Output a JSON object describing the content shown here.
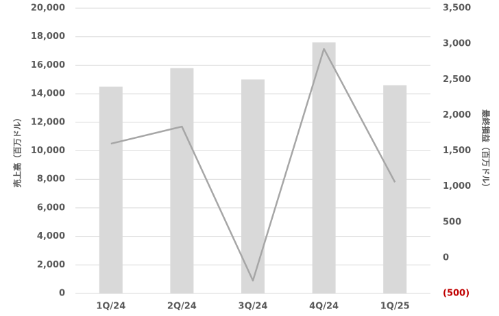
{
  "chart_data": {
    "type": "bar",
    "y_label": "売上高（百万ドル）",
    "y2_label": "最終損益（百万ドル）",
    "categories": [
      "1Q/24",
      "2Q/24",
      "3Q/24",
      "4Q/24",
      "1Q/25"
    ],
    "series": [
      {
        "type": "bar",
        "color": "#d9d9d9",
        "values": [
          14500,
          15800,
          15000,
          17600,
          14600
        ]
      },
      {
        "type": "line",
        "axis": "y2",
        "color": "#a6a6a6",
        "values": [
          1600,
          1840,
          -320,
          2930,
          1060
        ]
      }
    ],
    "ylim": [
      0,
      20000
    ],
    "yticks": [
      0,
      {
        "value": 2000,
        "label": "2,000"
      },
      {
        "value": 4000,
        "label": "4,000"
      },
      {
        "value": 6000,
        "label": "6,000"
      },
      {
        "value": 8000,
        "label": "8,000"
      },
      {
        "value": 10000,
        "label": "10,000"
      },
      {
        "value": 12000,
        "label": "12,000"
      },
      {
        "value": 14000,
        "label": "14,000"
      },
      {
        "value": 16000,
        "label": "16,000"
      },
      {
        "value": 18000,
        "label": "18,000"
      },
      {
        "value": 20000,
        "label": "20,000"
      }
    ],
    "y2lim": [
      -500,
      3500
    ],
    "y2ticks": [
      {
        "value": -500,
        "label": "(500)"
      },
      0,
      500,
      {
        "value": 1000,
        "label": "1,000"
      },
      {
        "value": 1500,
        "label": "1,500"
      },
      {
        "value": 2000,
        "label": "2,000"
      },
      {
        "value": 2500,
        "label": "2,500"
      },
      {
        "value": 3000,
        "label": "3,000"
      },
      {
        "value": 3500,
        "label": "3,500"
      }
    ],
    "y2_negative_color": "#c00000",
    "grid": true,
    "grid_color": "#d9d9d9"
  }
}
